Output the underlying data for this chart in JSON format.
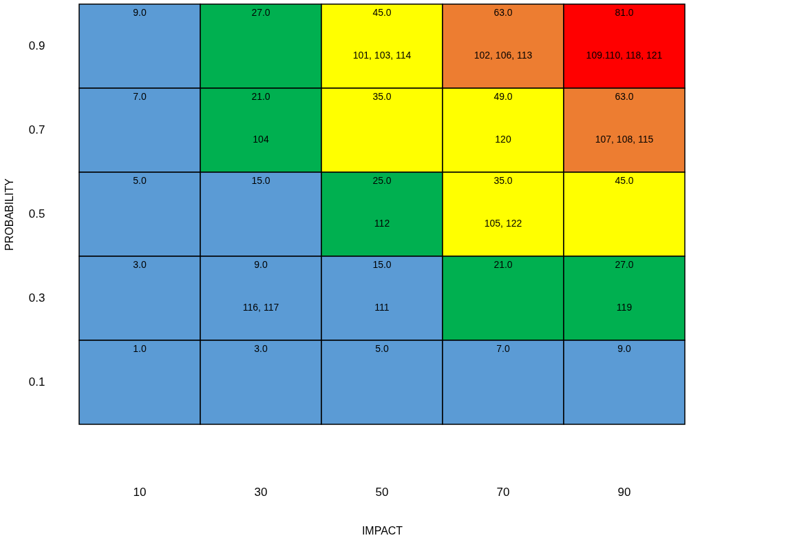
{
  "chart_data": {
    "type": "heatmap",
    "xlabel": "IMPACT",
    "ylabel": "PROBABILITY",
    "categories": [
      "10",
      "30",
      "50",
      "70",
      "90"
    ],
    "y_categories": [
      "0.9",
      "0.7",
      "0.5",
      "0.3",
      "0.1"
    ],
    "cells": [
      [
        9.0,
        27.0,
        45.0,
        63.0,
        81.0
      ],
      [
        7.0,
        21.0,
        35.0,
        49.0,
        63.0
      ],
      [
        5.0,
        15.0,
        25.0,
        35.0,
        45.0
      ],
      [
        3.0,
        9.0,
        15.0,
        21.0,
        27.0
      ],
      [
        1.0,
        3.0,
        5.0,
        7.0,
        9.0
      ]
    ],
    "cell_labels": [
      [
        "9.0",
        "27.0",
        "45.0",
        "63.0",
        "81.0"
      ],
      [
        "7.0",
        "21.0",
        "35.0",
        "49.0",
        "63.0"
      ],
      [
        "5.0",
        "15.0",
        "25.0",
        "35.0",
        "45.0"
      ],
      [
        "3.0",
        "9.0",
        "15.0",
        "21.0",
        "27.0"
      ],
      [
        "1.0",
        "3.0",
        "5.0",
        "7.0",
        "9.0"
      ]
    ],
    "annotations": [
      "101, 103, 114",
      "102, 106, 113",
      "109.110, 118, 121",
      "104",
      "120",
      "107, 108, 115",
      "112",
      "105, 122",
      "116, 117",
      "111",
      "119"
    ],
    "colors": [
      [
        "#5b9bd5",
        "#00b050",
        "#ffff00",
        "#ed7d31",
        "#ff0000"
      ],
      [
        "#5b9bd5",
        "#00b050",
        "#ffff00",
        "#ffff00",
        "#ed7d31"
      ],
      [
        "#5b9bd5",
        "#5b9bd5",
        "#00b050",
        "#ffff00",
        "#ffff00"
      ],
      [
        "#5b9bd5",
        "#5b9bd5",
        "#5b9bd5",
        "#00b050",
        "#00b050"
      ],
      [
        "#5b9bd5",
        "#5b9bd5",
        "#5b9bd5",
        "#5b9bd5",
        "#5b9bd5"
      ]
    ]
  }
}
